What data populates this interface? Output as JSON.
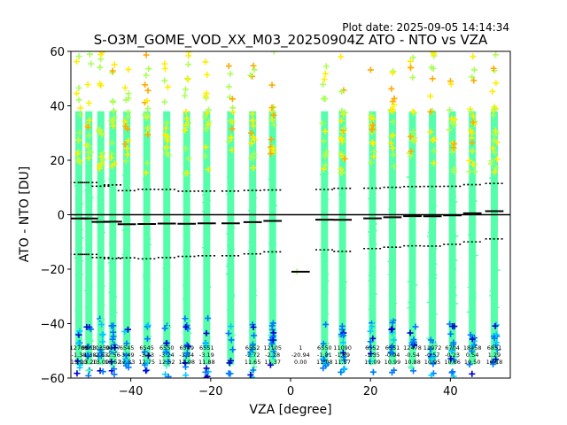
{
  "plot_date": "Plot date: 2025-09-05 14:14:34",
  "chart_data": {
    "type": "scatter",
    "title": "S-O3M_GOME_VOD_XX_M03_20250904Z ATO - NTO vs VZA",
    "xlabel": "VZA [degree]",
    "ylabel": "ATO - NTO [DU]",
    "xlim": [
      -55,
      55
    ],
    "ylim": [
      -60,
      60
    ],
    "xticks": [
      -40,
      -20,
      0,
      20,
      40
    ],
    "yticks": [
      -60,
      -40,
      -20,
      0,
      20,
      40,
      60
    ],
    "xtick_labels": [
      "−40",
      "−20",
      "0",
      "20",
      "40"
    ],
    "ytick_labels": [
      "−60",
      "−40",
      "−20",
      "0",
      "20",
      "40",
      "60"
    ],
    "marker": "+",
    "colors": {
      "dense": "#55ffaa",
      "mid": "#aaff55",
      "yellow": "#ffee00",
      "orange": "#ffaa00",
      "blue": "#0077ff",
      "darkblue": "#0000cc",
      "cyan": "#00ccff",
      "mean_line": "#000000"
    },
    "bins": [
      {
        "x": -53.0,
        "mean": -1.38,
        "std": 13.2,
        "count": "12709"
      },
      {
        "x": -50.5,
        "mean": -1.38,
        "std": 13.2,
        "count": "6663"
      },
      {
        "x": -47.5,
        "mean": -2.63,
        "std": 13.09,
        "count": "10350"
      },
      {
        "x": -44.5,
        "mean": -2.56,
        "std": 13.52,
        "count": "9177"
      },
      {
        "x": -41.0,
        "mean": -3.49,
        "std": 12.33,
        "count": "6545"
      },
      {
        "x": -36.0,
        "mean": -3.43,
        "std": 12.75,
        "count": "6545"
      },
      {
        "x": -31.0,
        "mean": -3.24,
        "std": 12.52,
        "count": "6550"
      },
      {
        "x": -26.0,
        "mean": -3.34,
        "std": 11.98,
        "count": "6549"
      },
      {
        "x": -21.0,
        "mean": -3.19,
        "std": 11.88,
        "count": "6551"
      },
      {
        "x": -15.0,
        "mean": -3.19,
        "std": 11.88,
        "count": ""
      },
      {
        "x": -9.5,
        "mean": -2.72,
        "std": 11.65,
        "count": "6552"
      },
      {
        "x": -4.5,
        "mean": -2.28,
        "std": 11.37,
        "count": "12105"
      },
      {
        "x": 2.5,
        "mean": -20.94,
        "std": 0.0,
        "count": "1"
      },
      {
        "x": 8.5,
        "mean": -1.81,
        "std": 11.08,
        "count": "6550"
      },
      {
        "x": 13.0,
        "mean": -1.89,
        "std": 11.57,
        "count": "11090"
      },
      {
        "x": 20.5,
        "mean": -1.35,
        "std": 11.09,
        "count": "6552"
      },
      {
        "x": 25.5,
        "mean": -0.94,
        "std": 10.99,
        "count": "6551"
      },
      {
        "x": 30.5,
        "mean": -0.54,
        "std": 10.88,
        "count": "12478"
      },
      {
        "x": 35.5,
        "mean": -0.57,
        "std": 10.95,
        "count": "11972"
      },
      {
        "x": 40.5,
        "mean": -0.23,
        "std": 10.66,
        "count": "6704"
      },
      {
        "x": 45.5,
        "mean": 0.54,
        "std": 10.5,
        "count": "18458"
      },
      {
        "x": 51.0,
        "mean": 1.29,
        "std": 10.18,
        "count": "6851"
      }
    ]
  }
}
